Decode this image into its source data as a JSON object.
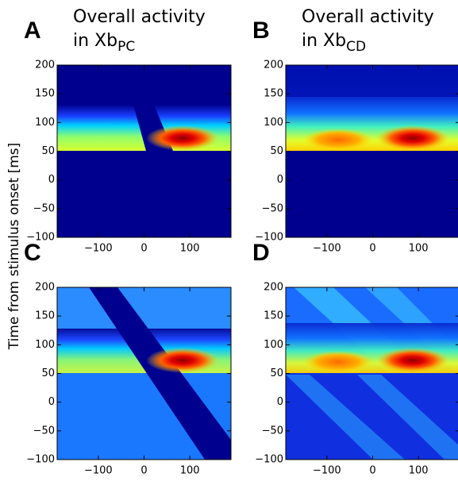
{
  "ylabel": "Time from stimulus onset [ms]",
  "chart_data": [
    {
      "type": "heatmap",
      "panel": "A",
      "title": [
        "Overall activity",
        "in Xb"
      ],
      "title_subscript": "PC",
      "xlim": [
        -190,
        190
      ],
      "ylim": [
        -100,
        200
      ],
      "xticks": [
        {
          "value": -100,
          "label": "−100"
        },
        0,
        100
      ],
      "yticks": [
        {
          "value": -100,
          "label": "−100"
        },
        {
          "value": -50,
          "label": "−50"
        },
        0,
        50,
        100,
        150,
        200
      ]
    },
    {
      "type": "heatmap",
      "panel": "B",
      "title": [
        "Overall activity",
        "in Xb"
      ],
      "title_subscript": "CD",
      "xlim": [
        -190,
        190
      ],
      "ylim": [
        -100,
        200
      ],
      "xticks": [
        {
          "value": -100,
          "label": "−100"
        },
        0,
        100
      ],
      "yticks": [
        {
          "value": -100,
          "label": "−100"
        },
        {
          "value": -50,
          "label": "−50"
        },
        0,
        50,
        100,
        150,
        200
      ]
    },
    {
      "type": "heatmap",
      "panel": "C",
      "xlim": [
        -190,
        190
      ],
      "ylim": [
        -100,
        200
      ],
      "xticks": [
        {
          "value": -100,
          "label": "−100"
        },
        0,
        100
      ],
      "yticks": [
        {
          "value": -100,
          "label": "−100"
        },
        {
          "value": -50,
          "label": "−50"
        },
        0,
        50,
        100,
        150,
        200
      ]
    },
    {
      "type": "heatmap",
      "panel": "D",
      "xlim": [
        -190,
        190
      ],
      "ylim": [
        -100,
        200
      ],
      "xticks": [
        {
          "value": -100,
          "label": "−100"
        },
        0,
        100
      ],
      "yticks": [
        {
          "value": -100,
          "label": "−100"
        },
        {
          "value": -50,
          "label": "−50"
        },
        0,
        50,
        100,
        150,
        200
      ]
    }
  ]
}
